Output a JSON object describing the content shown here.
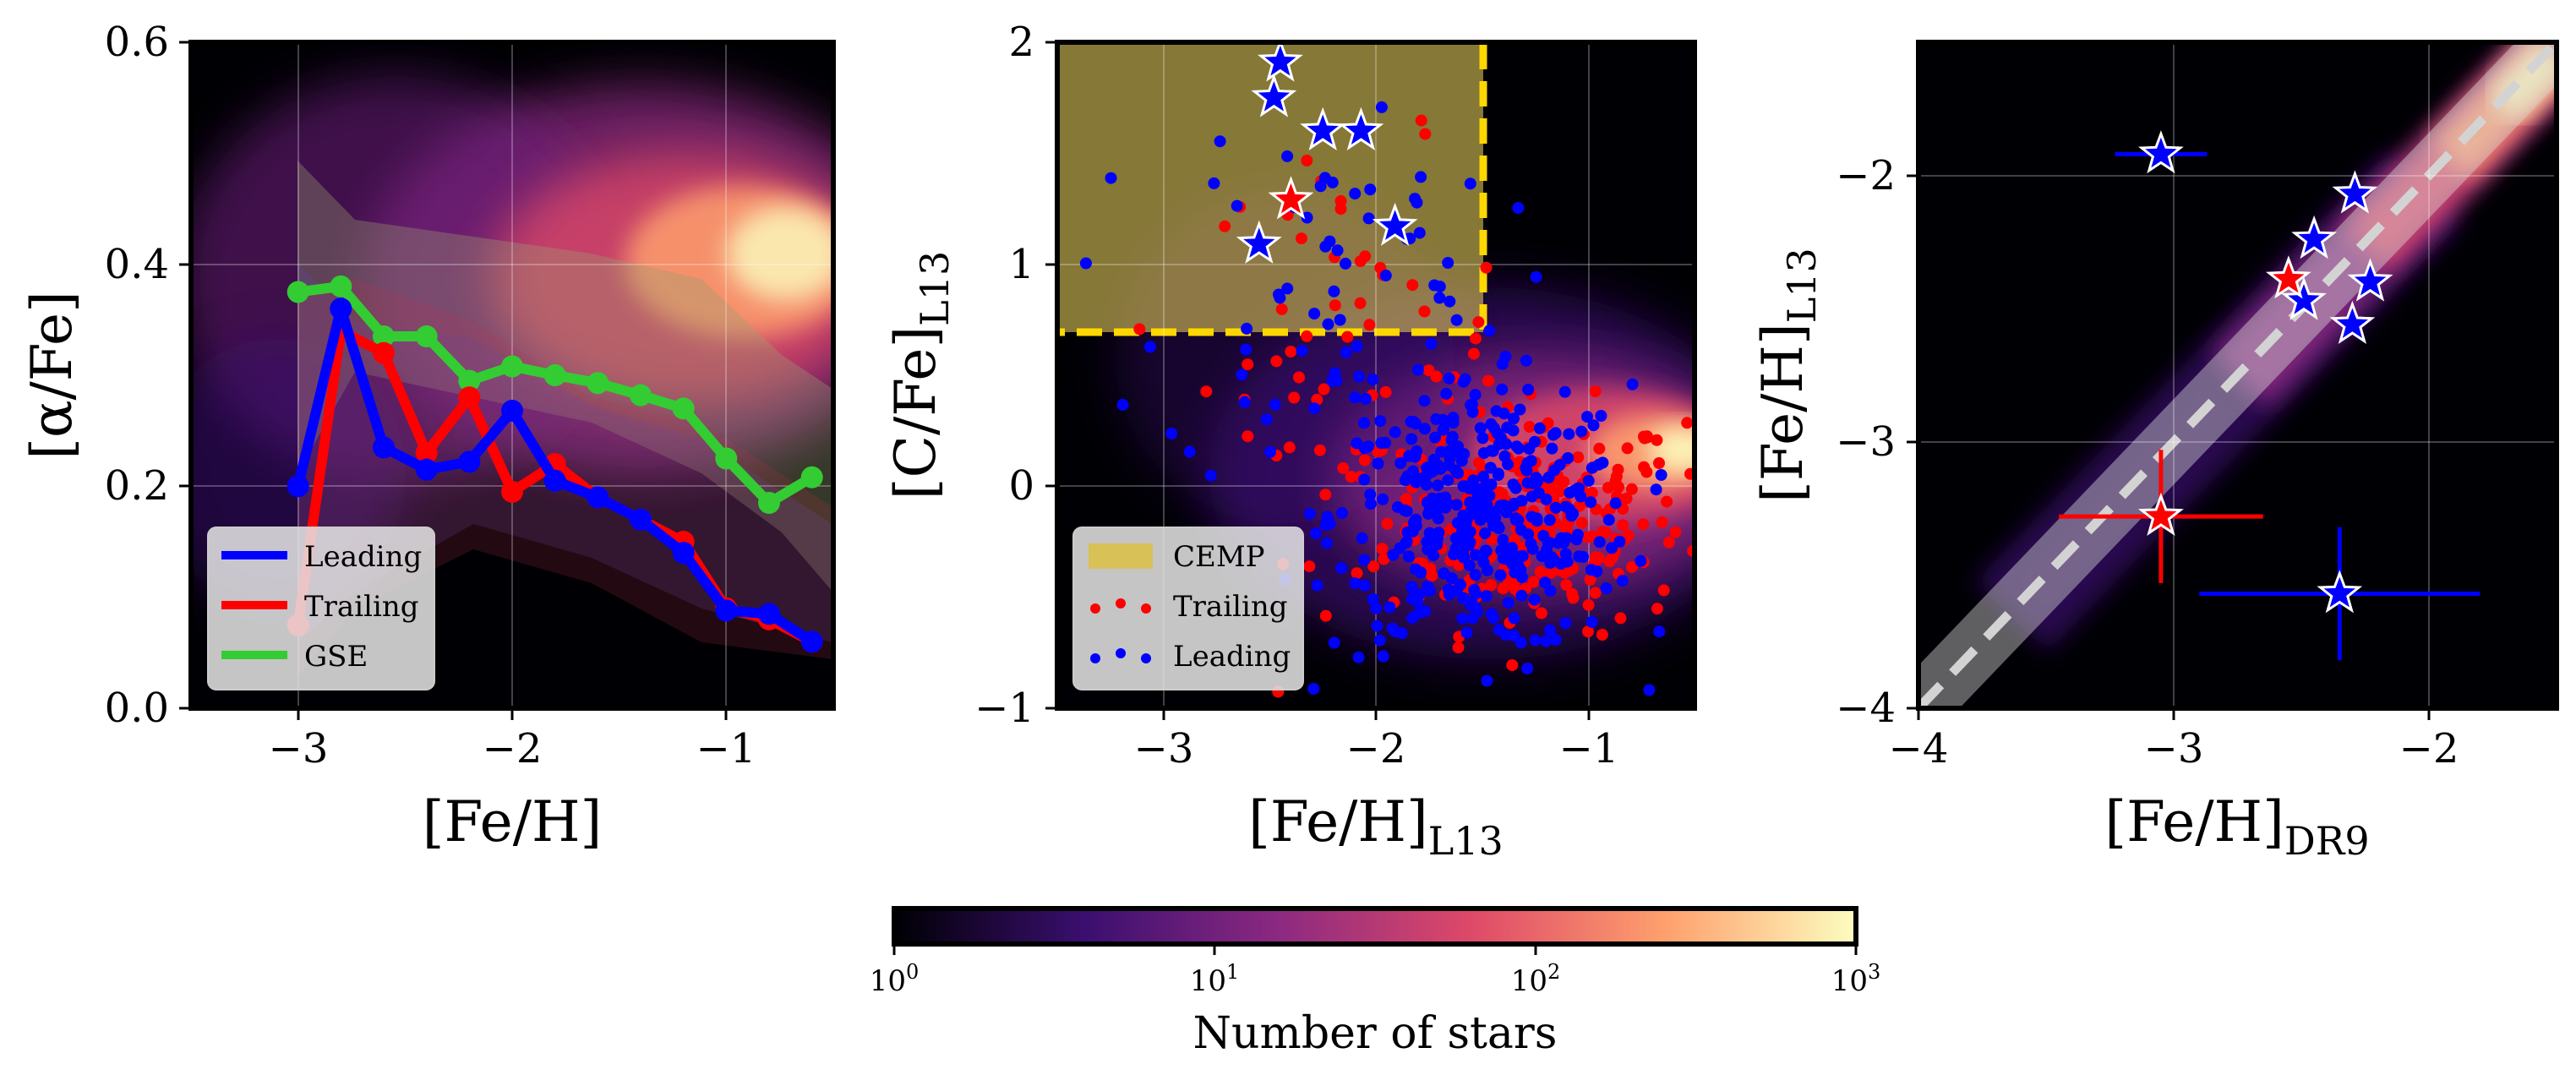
{
  "colormap": [
    "#000004",
    "#3b0f70",
    "#8c2981",
    "#de4968",
    "#fe9f6d",
    "#fcfdbf"
  ],
  "colors": {
    "leading": "#0000ff",
    "trailing": "#ff0000",
    "gse": "#33cc33",
    "cemp": "#d8c156",
    "cemp_border": "#ffd700",
    "identity": "#d3d3d3"
  },
  "chart_data": [
    {
      "type": "line",
      "panel": "left",
      "xlabel": "[Fe/H]",
      "ylabel": "[α/Fe]",
      "xlim": [
        -3.5,
        -0.5
      ],
      "ylim": [
        0.0,
        0.6
      ],
      "xticks": [
        -3,
        -2,
        -1
      ],
      "yticks": [
        0.0,
        0.2,
        0.4,
        0.6
      ],
      "xtick_labels": [
        "−3",
        "−2",
        "−1"
      ],
      "ytick_labels": [
        "0.0",
        "0.2",
        "0.4",
        "0.6"
      ],
      "legend_location": "lower-left",
      "series": [
        {
          "name": "Leading",
          "color": "#0000ff",
          "x": [
            -3.0,
            -2.8,
            -2.6,
            -2.4,
            -2.2,
            -2.0,
            -1.8,
            -1.6,
            -1.4,
            -1.2,
            -1.0,
            -0.8,
            -0.6
          ],
          "y": [
            0.2,
            0.36,
            0.235,
            0.215,
            0.222,
            0.268,
            0.205,
            0.19,
            0.17,
            0.14,
            0.088,
            0.085,
            0.06
          ]
        },
        {
          "name": "Trailing",
          "color": "#ff0000",
          "x": [
            -3.0,
            -2.8,
            -2.6,
            -2.4,
            -2.2,
            -2.0,
            -1.8,
            -1.6,
            -1.4,
            -1.2,
            -1.0,
            -0.8,
            -0.6
          ],
          "y": [
            0.075,
            0.34,
            0.32,
            0.23,
            0.28,
            0.195,
            0.22,
            0.19,
            0.17,
            0.15,
            0.09,
            0.08,
            0.06
          ]
        },
        {
          "name": "GSE",
          "color": "#33cc33",
          "x": [
            -3.0,
            -2.8,
            -2.6,
            -2.4,
            -2.2,
            -2.0,
            -1.8,
            -1.6,
            -1.4,
            -1.2,
            -1.0,
            -0.8,
            -0.6
          ],
          "y": [
            0.375,
            0.38,
            0.335,
            0.335,
            0.295,
            0.308,
            0.3,
            0.293,
            0.282,
            0.27,
            0.225,
            0.185,
            0.208
          ]
        }
      ]
    },
    {
      "type": "scatter",
      "panel": "middle",
      "xlabel": "[Fe/H]",
      "xlabel_sub": "L13",
      "ylabel": "[C/Fe]",
      "ylabel_sub": "L13",
      "xlim": [
        -3.5,
        -0.5
      ],
      "ylim": [
        -1.0,
        2.0
      ],
      "xticks": [
        -3,
        -2,
        -1
      ],
      "yticks": [
        -1,
        0,
        1,
        2
      ],
      "xtick_labels": [
        "−3",
        "−2",
        "−1"
      ],
      "ytick_labels": [
        "−1",
        "0",
        "1",
        "2"
      ],
      "cemp_region": {
        "fe_h_max": -1.5,
        "c_fe_min": 0.7
      },
      "legend_location": "lower-left",
      "legend": [
        "CEMP",
        "Trailing",
        "Leading"
      ],
      "stars": [
        {
          "group": "Leading",
          "x": -2.45,
          "y": 1.91
        },
        {
          "group": "Leading",
          "x": -2.48,
          "y": 1.75
        },
        {
          "group": "Leading",
          "x": -2.25,
          "y": 1.6
        },
        {
          "group": "Leading",
          "x": -2.07,
          "y": 1.6
        },
        {
          "group": "Leading",
          "x": -2.55,
          "y": 1.09
        },
        {
          "group": "Leading",
          "x": -1.91,
          "y": 1.17
        },
        {
          "group": "Trailing",
          "x": -2.4,
          "y": 1.29
        }
      ]
    },
    {
      "type": "scatter",
      "panel": "right",
      "xlabel": "[Fe/H]",
      "xlabel_sub": "DR9",
      "ylabel": "[Fe/H]",
      "ylabel_sub": "L13",
      "xlim": [
        -4.0,
        -1.5
      ],
      "ylim": [
        -4.0,
        -1.5
      ],
      "xticks": [
        -4,
        -3,
        -2
      ],
      "yticks": [
        -4,
        -3,
        -2
      ],
      "xtick_labels": [
        "−4",
        "−3",
        "−2"
      ],
      "ytick_labels": [
        "−4",
        "−3",
        "−2"
      ],
      "identity_line": true,
      "stars": [
        {
          "group": "Leading",
          "x": -3.05,
          "y": -1.92,
          "xerr": 0.18,
          "yerr": 0.0
        },
        {
          "group": "Leading",
          "x": -2.29,
          "y": -2.07,
          "xerr": 0.0,
          "yerr": 0.0
        },
        {
          "group": "Leading",
          "x": -2.45,
          "y": -2.24,
          "xerr": 0.0,
          "yerr": 0.0
        },
        {
          "group": "Leading",
          "x": -2.23,
          "y": -2.4,
          "xerr": 0.0,
          "yerr": 0.0
        },
        {
          "group": "Leading",
          "x": -2.49,
          "y": -2.47,
          "xerr": 0.0,
          "yerr": 0.0
        },
        {
          "group": "Leading",
          "x": -2.3,
          "y": -2.56,
          "xerr": 0.0,
          "yerr": 0.0
        },
        {
          "group": "Trailing",
          "x": -2.55,
          "y": -2.39,
          "xerr": 0.0,
          "yerr": 0.0
        },
        {
          "group": "Trailing",
          "x": -3.05,
          "y": -3.28,
          "xerr": 0.4,
          "yerr": 0.25
        },
        {
          "group": "Leading",
          "x": -2.35,
          "y": -3.57,
          "xerr": 0.55,
          "yerr": 0.25
        }
      ]
    },
    {
      "type": "colorbar",
      "label": "Number of stars",
      "scale": "log",
      "range": [
        1,
        1000
      ],
      "ticks": [
        1,
        10,
        100,
        1000
      ],
      "tick_base": "10",
      "tick_exponents": [
        "0",
        "1",
        "2",
        "3"
      ]
    }
  ]
}
